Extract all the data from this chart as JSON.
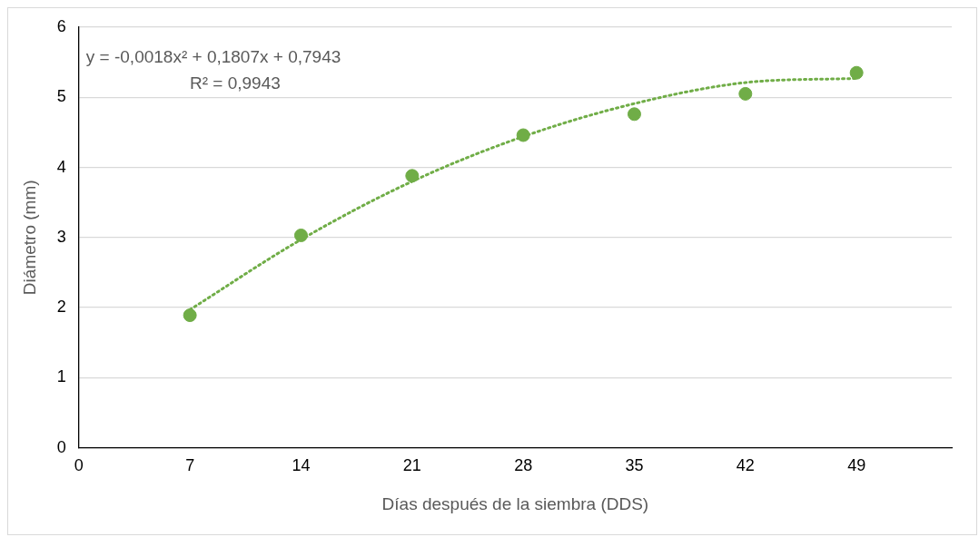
{
  "chart_data": {
    "type": "scatter",
    "xlabel": "Días después de la siembra (DDS)",
    "ylabel": "Diámetro (mm)",
    "xlim": [
      0,
      55
    ],
    "xticks": [
      0,
      7,
      14,
      21,
      28,
      35,
      42,
      49
    ],
    "ylim": [
      0,
      6
    ],
    "yticks": [
      0,
      1,
      2,
      3,
      4,
      5,
      6
    ],
    "grid": "y",
    "legend": false,
    "series": [
      {
        "color": "#70ad47",
        "marker": "circle",
        "x": [
          7,
          14,
          21,
          28,
          35,
          42,
          49
        ],
        "values": [
          1.89,
          3.03,
          3.88,
          4.46,
          4.76,
          5.05,
          5.35
        ]
      },
      {
        "type": "line",
        "color": "#70ad47",
        "line_style": "dotted",
        "marker": "none",
        "x": [
          7,
          14,
          21,
          28,
          35,
          42,
          49
        ],
        "values": [
          1.97,
          2.97,
          3.8,
          4.44,
          4.91,
          5.21,
          5.27
        ]
      }
    ],
    "annotations": [
      "y = -0,0018x² + 0,1807x + 0,7943",
      "R² = 0,9943"
    ]
  }
}
